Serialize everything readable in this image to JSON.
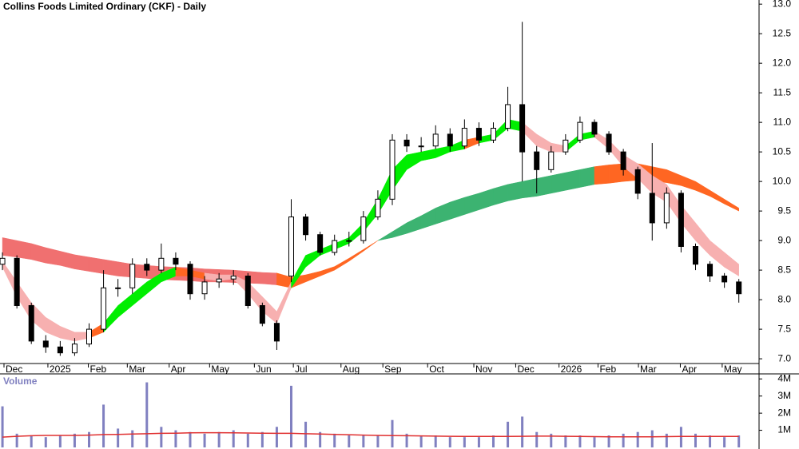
{
  "chart_data": [
    {
      "type": "candlestick",
      "title": "Collins Foods Limited Ordinary (CKF) - Daily",
      "xlim": [
        -0.17,
        52.4
      ],
      "xticks": [
        {
          "value": 0.66,
          "label": "Dec"
        },
        {
          "value": 3.7,
          "label": "2025"
        },
        {
          "value": 6.5,
          "label": "Feb"
        },
        {
          "value": 9.2,
          "label": "Mar"
        },
        {
          "value": 12.1,
          "label": "Apr"
        },
        {
          "value": 14.9,
          "label": "May"
        },
        {
          "value": 18.0,
          "label": "Jun"
        },
        {
          "value": 20.7,
          "label": "Jul"
        },
        {
          "value": 24.0,
          "label": "Aug"
        },
        {
          "value": 26.9,
          "label": "Sep"
        },
        {
          "value": 30.0,
          "label": "Oct"
        },
        {
          "value": 33.2,
          "label": "Nov"
        },
        {
          "value": 36.1,
          "label": "Dec"
        },
        {
          "value": 39.1,
          "label": "2026"
        },
        {
          "value": 41.8,
          "label": "Feb"
        },
        {
          "value": 44.6,
          "label": "Mar"
        },
        {
          "value": 47.5,
          "label": "Apr"
        },
        {
          "value": 50.4,
          "label": "May"
        }
      ],
      "ylim": [
        6.92,
        13.07
      ],
      "yticks": [
        {
          "value": 7,
          "label": "7.0"
        },
        {
          "value": 7.5,
          "label": "7.5"
        },
        {
          "value": 8,
          "label": "8.0"
        },
        {
          "value": 8.5,
          "label": "8.5"
        },
        {
          "value": 9,
          "label": "9.0"
        },
        {
          "value": 9.5,
          "label": "9.5"
        },
        {
          "value": 10,
          "label": "10.0"
        },
        {
          "value": 10.5,
          "label": "10.5"
        },
        {
          "value": 11,
          "label": "11.0"
        },
        {
          "value": 11.5,
          "label": "11.5"
        },
        {
          "value": 12,
          "label": "12.0"
        },
        {
          "value": 12.5,
          "label": "12.5"
        },
        {
          "value": 13,
          "label": "13.0"
        }
      ],
      "open": [
        8.6,
        8.7,
        7.9,
        7.3,
        7.2,
        7.1,
        7.25,
        7.5,
        8.2,
        8.2,
        8.6,
        8.5,
        8.7,
        8.6,
        8.1,
        8.3,
        8.35,
        8.4,
        7.9,
        7.6,
        8.4,
        9.4,
        9.1,
        8.8,
        9.0,
        9.0,
        9.4,
        9.7,
        10.7,
        10.6,
        10.6,
        10.8,
        10.6,
        10.9,
        10.7,
        10.9,
        11.3,
        10.5,
        10.2,
        10.5,
        10.7,
        11.0,
        10.8,
        10.5,
        10.2,
        9.8,
        9.3,
        9.8,
        8.9,
        8.6,
        8.4,
        8.3
      ],
      "high": [
        8.8,
        8.75,
        7.95,
        7.4,
        7.3,
        7.35,
        7.6,
        8.5,
        8.35,
        8.7,
        8.7,
        8.95,
        8.8,
        8.65,
        8.4,
        8.45,
        8.5,
        8.45,
        7.95,
        7.65,
        9.7,
        9.45,
        9.15,
        9.1,
        9.15,
        9.5,
        9.85,
        10.8,
        10.8,
        10.75,
        10.95,
        10.9,
        11.05,
        11.0,
        11.0,
        11.6,
        12.7,
        10.6,
        10.6,
        10.8,
        11.1,
        11.05,
        10.85,
        10.55,
        10.25,
        10.65,
        9.9,
        9.85,
        8.95,
        8.65,
        8.45,
        8.35
      ],
      "low": [
        8.5,
        7.85,
        7.25,
        7.1,
        7.05,
        7.05,
        7.2,
        7.45,
        8.05,
        8.1,
        8.4,
        8.45,
        8.5,
        8.0,
        8.0,
        8.2,
        8.25,
        7.85,
        7.55,
        7.15,
        8.3,
        9.0,
        8.75,
        8.75,
        8.9,
        8.95,
        9.35,
        9.6,
        10.5,
        10.5,
        10.55,
        10.5,
        10.55,
        10.6,
        10.65,
        10.85,
        10.0,
        9.8,
        10.15,
        10.45,
        10.65,
        10.75,
        10.45,
        10.1,
        9.7,
        9.0,
        9.2,
        8.8,
        8.5,
        8.3,
        8.2,
        7.95
      ],
      "close": [
        8.7,
        7.9,
        7.3,
        7.2,
        7.1,
        7.25,
        7.5,
        8.2,
        8.2,
        8.6,
        8.5,
        8.7,
        8.6,
        8.1,
        8.3,
        8.35,
        8.4,
        7.9,
        7.6,
        7.3,
        9.4,
        9.1,
        8.8,
        9.0,
        9.0,
        9.4,
        9.7,
        10.7,
        10.6,
        10.6,
        10.8,
        10.6,
        10.9,
        10.7,
        10.9,
        11.3,
        10.5,
        10.2,
        10.5,
        10.7,
        11.0,
        10.8,
        10.5,
        10.2,
        9.8,
        9.3,
        9.8,
        8.9,
        8.6,
        8.4,
        8.3,
        8.1
      ],
      "ribbons": [
        {
          "upper": [
            9.05,
            9.0,
            8.95,
            8.88,
            8.82,
            8.76,
            8.72,
            8.68,
            8.64,
            8.6,
            8.58,
            8.56,
            8.55,
            8.54,
            8.52,
            8.51,
            8.5,
            8.48,
            8.46,
            8.45,
            8.38,
            8.42,
            8.48,
            8.56,
            8.7,
            8.85,
            9.0,
            9.15,
            9.3,
            9.42,
            9.55,
            9.65,
            9.73,
            9.8,
            9.88,
            9.95,
            10.0,
            10.05,
            10.1,
            10.15,
            10.2,
            10.25,
            10.28,
            10.3,
            10.3,
            10.25,
            10.2,
            10.1,
            10.0,
            9.85,
            9.7,
            9.55
          ],
          "lower": [
            8.75,
            8.72,
            8.68,
            8.62,
            8.58,
            8.52,
            8.48,
            8.44,
            8.4,
            8.38,
            8.36,
            8.34,
            8.33,
            8.32,
            8.3,
            8.3,
            8.29,
            8.28,
            8.27,
            8.25,
            8.2,
            8.3,
            8.4,
            8.5,
            8.65,
            8.82,
            9.0,
            9.05,
            9.12,
            9.2,
            9.28,
            9.36,
            9.44,
            9.52,
            9.6,
            9.67,
            9.72,
            9.75,
            9.8,
            9.85,
            9.9,
            9.95,
            9.97,
            10.0,
            10.02,
            10.0,
            9.98,
            9.93,
            9.85,
            9.75,
            9.62,
            9.5
          ],
          "colors": [
            "#f07070",
            "#f07070",
            "#f07070",
            "#f07070",
            "#f07070",
            "#f07070",
            "#f07070",
            "#f07070",
            "#f07070",
            "#f07070",
            "#f07070",
            "#f07070",
            "#f07070",
            "#f07070",
            "#f07070",
            "#f07070",
            "#f07070",
            "#f07070",
            "#f07070",
            "#ff6622",
            "#ff6622",
            "#ff6622",
            "#ff6622",
            "#ff6622",
            "#ff6622",
            "#ff6622",
            "#3cb371",
            "#3cb371",
            "#3cb371",
            "#3cb371",
            "#3cb371",
            "#3cb371",
            "#3cb371",
            "#3cb371",
            "#3cb371",
            "#3cb371",
            "#3cb371",
            "#3cb371",
            "#3cb371",
            "#3cb371",
            "#3cb371",
            "#ff6622",
            "#ff6622",
            "#ff6622",
            "#ff6622",
            "#ff6622",
            "#ff6622",
            "#ff6622",
            "#ff6622",
            "#ff6622",
            "#ff6622"
          ]
        },
        {
          "upper": [
            8.65,
            8.3,
            7.95,
            7.7,
            7.55,
            7.45,
            7.45,
            7.6,
            7.9,
            8.1,
            8.3,
            8.45,
            8.55,
            8.5,
            8.45,
            8.42,
            8.42,
            8.3,
            8.05,
            7.8,
            8.3,
            8.75,
            8.85,
            8.95,
            9.05,
            9.3,
            9.7,
            10.2,
            10.45,
            10.5,
            10.55,
            10.6,
            10.7,
            10.75,
            10.8,
            11.05,
            11.0,
            10.8,
            10.65,
            10.6,
            10.8,
            10.85,
            10.7,
            10.45,
            10.3,
            10.1,
            9.95,
            9.6,
            9.3,
            9.0,
            8.8,
            8.6
          ],
          "lower": [
            8.55,
            8.05,
            7.65,
            7.45,
            7.35,
            7.3,
            7.35,
            7.45,
            7.7,
            7.9,
            8.1,
            8.3,
            8.4,
            8.4,
            8.35,
            8.32,
            8.35,
            8.1,
            7.8,
            7.6,
            8.2,
            8.55,
            8.75,
            8.85,
            8.95,
            9.15,
            9.45,
            9.85,
            10.2,
            10.35,
            10.4,
            10.5,
            10.55,
            10.65,
            10.7,
            10.9,
            10.85,
            10.6,
            10.5,
            10.5,
            10.7,
            10.75,
            10.55,
            10.25,
            10.05,
            9.8,
            9.65,
            9.3,
            9.0,
            8.75,
            8.55,
            8.4
          ],
          "colors": [
            "#f7b0b0",
            "#f7b0b0",
            "#f7b0b0",
            "#f7b0b0",
            "#f7b0b0",
            "#f7b0b0",
            "#ff6622",
            "#00ee00",
            "#00ee00",
            "#00ee00",
            "#00ee00",
            "#00ee00",
            "#ff6622",
            "#ff6622",
            "#f7b0b0",
            "#f7b0b0",
            "#f7b0b0",
            "#f7b0b0",
            "#f7b0b0",
            "#f7b0b0",
            "#00ee00",
            "#00ee00",
            "#00ee00",
            "#00ee00",
            "#00ee00",
            "#00ee00",
            "#00ee00",
            "#00ee00",
            "#00ee00",
            "#00ee00",
            "#00ee00",
            "#00ee00",
            "#ff6622",
            "#00ee00",
            "#00ee00",
            "#00ee00",
            "#f7b0b0",
            "#f7b0b0",
            "#f7b0b0",
            "#00ee00",
            "#00ee00",
            "#f7b0b0",
            "#f7b0b0",
            "#f7b0b0",
            "#f7b0b0",
            "#f7b0b0",
            "#f7b0b0",
            "#f7b0b0",
            "#f7b0b0",
            "#f7b0b0",
            "#f7b0b0"
          ]
        }
      ]
    },
    {
      "type": "bar",
      "title": "Volume",
      "color": "#8080c0",
      "avg_color": "#e03030",
      "ylim": [
        0,
        4200000
      ],
      "yticks": [
        {
          "value": 1000000,
          "label": "1M"
        },
        {
          "value": 2000000,
          "label": "2M"
        },
        {
          "value": 3000000,
          "label": "3M"
        },
        {
          "value": 4000000,
          "label": "4M"
        }
      ],
      "values": [
        2400000,
        800000,
        700000,
        600000,
        700000,
        800000,
        900000,
        2500000,
        1100000,
        1000000,
        3800000,
        1200000,
        1000000,
        900000,
        800000,
        900000,
        1000000,
        800000,
        900000,
        1200000,
        3600000,
        1500000,
        900000,
        800000,
        700000,
        700000,
        700000,
        1600000,
        800000,
        700000,
        700000,
        600000,
        600000,
        600000,
        700000,
        1500000,
        1800000,
        900000,
        800000,
        700000,
        700000,
        600000,
        700000,
        800000,
        900000,
        1000000,
        800000,
        1200000,
        800000,
        700000,
        600000,
        700000
      ],
      "average": [
        600000,
        650000,
        680000,
        700000,
        700000,
        700000,
        720000,
        750000,
        760000,
        780000,
        800000,
        820000,
        830000,
        850000,
        860000,
        860000,
        850000,
        840000,
        830000,
        820000,
        820000,
        800000,
        780000,
        760000,
        740000,
        720000,
        700000,
        690000,
        680000,
        670000,
        660000,
        650000,
        640000,
        640000,
        640000,
        640000,
        650000,
        660000,
        660000,
        650000,
        640000,
        630000,
        620000,
        620000,
        620000,
        620000,
        630000,
        640000,
        640000,
        640000,
        640000,
        640000
      ]
    }
  ]
}
